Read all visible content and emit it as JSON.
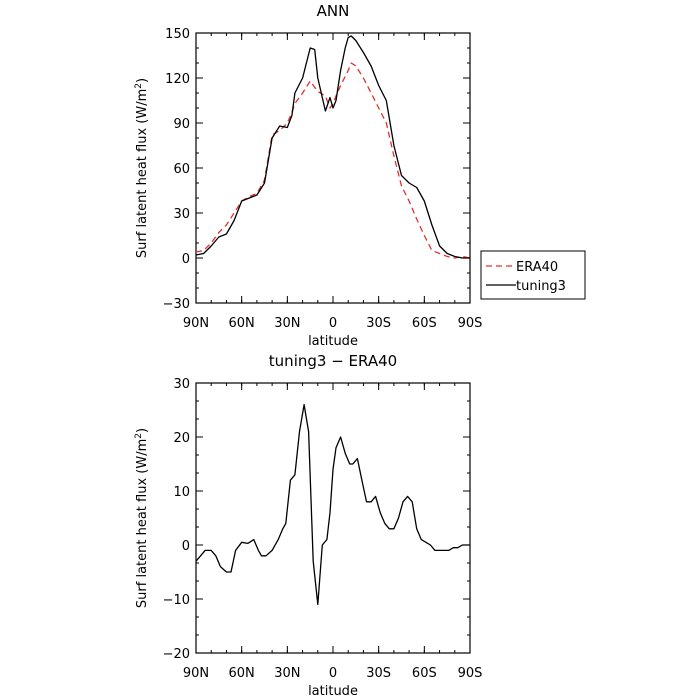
{
  "chart_data": [
    {
      "type": "line",
      "title": "ANN",
      "xlabel": "latitude",
      "ylabel_parts": {
        "pre": "Surf latent heat flux (W/m",
        "sup": "2",
        "post": ")"
      },
      "xlim": [
        90,
        -90
      ],
      "ylim": [
        -30,
        150
      ],
      "xticks": [
        {
          "value": 90,
          "label": "90N"
        },
        {
          "value": 60,
          "label": "60N"
        },
        {
          "value": 30,
          "label": "30N"
        },
        {
          "value": 0,
          "label": "0"
        },
        {
          "value": -30,
          "label": "30S"
        },
        {
          "value": -60,
          "label": "60S"
        },
        {
          "value": -90,
          "label": "90S"
        }
      ],
      "yticks": [
        {
          "value": -30,
          "label": "−30"
        },
        {
          "value": 0,
          "label": "0"
        },
        {
          "value": 30,
          "label": "30"
        },
        {
          "value": 60,
          "label": "60"
        },
        {
          "value": 90,
          "label": "90"
        },
        {
          "value": 120,
          "label": "120"
        },
        {
          "value": 150,
          "label": "150"
        }
      ],
      "legend": {
        "placement": "right"
      },
      "series": [
        {
          "name": "ERA40",
          "color": "#e03030",
          "dash": "dashed",
          "x": [
            90,
            85,
            80,
            75,
            70,
            65,
            60,
            55,
            50,
            45,
            40,
            35,
            30,
            27,
            25,
            20,
            15,
            10,
            5,
            2,
            0,
            -2,
            -5,
            -10,
            -12,
            -15,
            -20,
            -25,
            -30,
            -35,
            -40,
            -45,
            -50,
            -55,
            -60,
            -65,
            -70,
            -75,
            -80,
            -85,
            -90
          ],
          "y": [
            4,
            5,
            10,
            17,
            22,
            30,
            38,
            41,
            43,
            52,
            82,
            85,
            90,
            97,
            103,
            110,
            118,
            111,
            108,
            100,
            103,
            108,
            115,
            125,
            130,
            128,
            120,
            110,
            100,
            90,
            68,
            48,
            38,
            26,
            15,
            5,
            3,
            1,
            0,
            1,
            0
          ]
        },
        {
          "name": "tuning3",
          "color": "#000000",
          "dash": "solid",
          "x": [
            90,
            85,
            80,
            75,
            70,
            65,
            60,
            55,
            50,
            45,
            40,
            35,
            30,
            27,
            25,
            20,
            15,
            12,
            10,
            5,
            2,
            0,
            -2,
            -5,
            -8,
            -10,
            -12,
            -15,
            -20,
            -25,
            -30,
            -35,
            -40,
            -45,
            -50,
            -55,
            -60,
            -65,
            -70,
            -75,
            -80,
            -85,
            -90
          ],
          "y": [
            2,
            3,
            8,
            14,
            16,
            25,
            38,
            40,
            42,
            50,
            80,
            88,
            87,
            95,
            110,
            120,
            140,
            139,
            120,
            98,
            107,
            100,
            105,
            125,
            140,
            147,
            148,
            145,
            137,
            128,
            115,
            105,
            75,
            55,
            50,
            47,
            38,
            22,
            8,
            3,
            1,
            0,
            0
          ]
        }
      ]
    },
    {
      "type": "line",
      "title": "tuning3 − ERA40",
      "xlabel": "latitude",
      "ylabel_parts": {
        "pre": "Surf latent heat flux (W/m",
        "sup": "2",
        "post": ")"
      },
      "xlim": [
        90,
        -90
      ],
      "ylim": [
        -20,
        30
      ],
      "xticks": [
        {
          "value": 90,
          "label": "90N"
        },
        {
          "value": 60,
          "label": "60N"
        },
        {
          "value": 30,
          "label": "30N"
        },
        {
          "value": 0,
          "label": "0"
        },
        {
          "value": -30,
          "label": "30S"
        },
        {
          "value": -60,
          "label": "60S"
        },
        {
          "value": -90,
          "label": "90S"
        }
      ],
      "yticks": [
        {
          "value": -20,
          "label": "−20"
        },
        {
          "value": -10,
          "label": "−10"
        },
        {
          "value": 0,
          "label": "0"
        },
        {
          "value": 10,
          "label": "10"
        },
        {
          "value": 20,
          "label": "20"
        },
        {
          "value": 30,
          "label": "30"
        }
      ],
      "series": [
        {
          "name": "",
          "color": "#000000",
          "dash": "solid",
          "x": [
            90,
            87,
            84,
            80,
            77,
            74,
            70,
            67,
            64,
            60,
            56,
            52,
            49,
            47,
            44,
            40,
            36,
            33,
            31,
            28,
            25,
            22,
            19,
            16,
            13,
            10,
            7,
            4,
            2,
            0,
            -2,
            -5,
            -8,
            -11,
            -13,
            -16,
            -19,
            -22,
            -25,
            -28,
            -31,
            -34,
            -37,
            -40,
            -43,
            -46,
            -49,
            -52,
            -55,
            -58,
            -61,
            -64,
            -67,
            -70,
            -73,
            -76,
            -79,
            -82,
            -85,
            -88,
            -90
          ],
          "y": [
            -3,
            -2,
            -1,
            -1,
            -2,
            -4,
            -5,
            -5,
            -1,
            0.5,
            0.3,
            1,
            -1,
            -2,
            -2,
            -1,
            1,
            3,
            4,
            12,
            13,
            21,
            26,
            21,
            -3,
            -11,
            0,
            1,
            6,
            14,
            18,
            20,
            17,
            15,
            15,
            16,
            12,
            8,
            8,
            9,
            6,
            4,
            3,
            3,
            5,
            8,
            9,
            8,
            3,
            1,
            0.5,
            0,
            -1,
            -1,
            -1,
            -1,
            -0.5,
            -0.5,
            0,
            0,
            0
          ]
        }
      ]
    }
  ]
}
